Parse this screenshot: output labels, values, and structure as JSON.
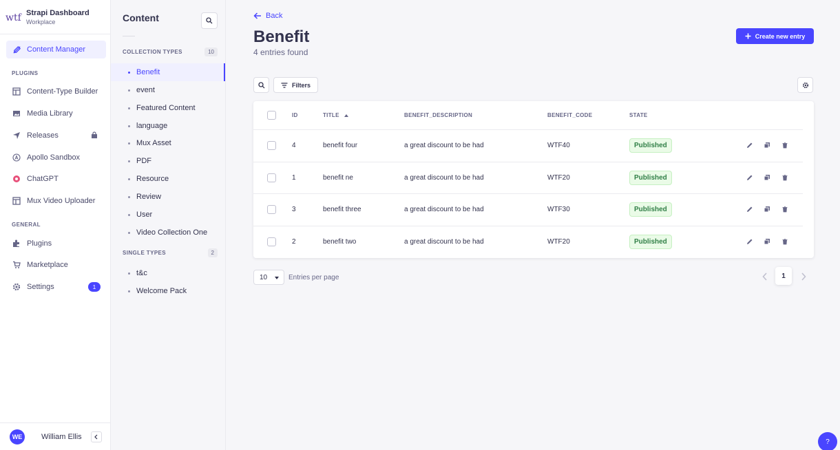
{
  "brand": {
    "title": "Strapi Dashboard",
    "subtitle": "Workplace",
    "logo_text": "wtf"
  },
  "mainnav": {
    "content_manager": "Content Manager",
    "plugins_label": "PLUGINS",
    "plugins": [
      "Content-Type Builder",
      "Media Library",
      "Releases",
      "Apollo Sandbox",
      "ChatGPT",
      "Mux Video Uploader"
    ],
    "general_label": "GENERAL",
    "general": [
      "Plugins",
      "Marketplace",
      "Settings"
    ],
    "settings_badge": "1",
    "user_initials": "WE",
    "user_name": "William Ellis"
  },
  "subnav": {
    "title": "Content",
    "collection_label": "COLLECTION TYPES",
    "collection_count": "10",
    "collection_types": [
      "Benefit",
      "event",
      "Featured Content",
      "language",
      "Mux Asset",
      "PDF",
      "Resource",
      "Review",
      "User",
      "Video Collection One"
    ],
    "single_label": "SINGLE TYPES",
    "single_count": "2",
    "single_types": [
      "t&c",
      "Welcome Pack"
    ]
  },
  "main": {
    "back_label": "Back",
    "title": "Benefit",
    "subtitle": "4 entries found",
    "create_label": "Create new entry",
    "filters_label": "Filters",
    "columns": [
      "ID",
      "TITLE",
      "BENEFIT_DESCRIPTION",
      "BENEFIT_CODE",
      "STATE"
    ],
    "rows": [
      {
        "id": "4",
        "title": "benefit four",
        "description": "a great discount to be had",
        "code": "WTF40",
        "state": "Published"
      },
      {
        "id": "1",
        "title": "benefit ne",
        "description": "a great discount to be had",
        "code": "WTF20",
        "state": "Published"
      },
      {
        "id": "3",
        "title": "benefit three",
        "description": "a great discount to be had",
        "code": "WTF30",
        "state": "Published"
      },
      {
        "id": "2",
        "title": "benefit two",
        "description": "a great discount to be had",
        "code": "WTF20",
        "state": "Published"
      }
    ],
    "per_page_value": "10",
    "per_page_label": "Entries per page",
    "current_page": "1",
    "help_label": "?"
  },
  "colors": {
    "primary": "#4945ff",
    "success_text": "#328048",
    "success_bg": "#eafbe7"
  }
}
